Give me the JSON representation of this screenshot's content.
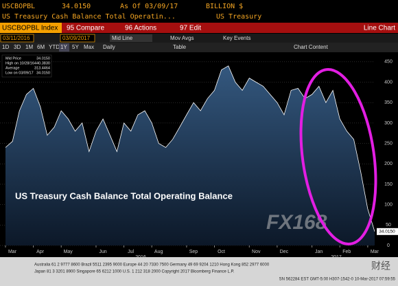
{
  "header": {
    "ticker": "USCBOPBL",
    "price": "34.0150",
    "as_of": "As Of 03/09/17",
    "units": "BILLION $",
    "description": "US Treasury Cash Balance Total Operatin...",
    "source": "US Treasury"
  },
  "toolbar": {
    "index": "USCBOPBL Index",
    "compare": "95 Compare",
    "actions": "96 Actions",
    "edit": "97 Edit",
    "chart_type": "Line Chart"
  },
  "controls": {
    "start": "03/11/2016",
    "end": "03/09/2017",
    "line": "Mid Line",
    "mov_avgs": "Mov Avgs",
    "key_events": "Key Events"
  },
  "periods": [
    "1D",
    "3D",
    "1M",
    "6M",
    "YTD",
    "1Y",
    "5Y",
    "Max"
  ],
  "frequency": "Daily",
  "table": "Table",
  "chart_content": "Chart Content",
  "watermark": {
    "brand": "FX168",
    "cn": "财经"
  },
  "footer": [
    "Australia 61 2 9777 8600 Brazil 5511 2395 9000 Europe 44 20 7330 7500 Germany 49 69 9204 1210 Hong Kong 852 2977 6000",
    "Japan 81 3 3201 8900 Singapore 65 6212 1000 U.S. 1 212 318 2000 Copyright 2017 Bloomberg Finance L.P.",
    "SN 562284 EST GMT-5:00 H307-1542-0 10-Mar-2017 07:59:55"
  ],
  "chart_data": {
    "type": "area",
    "annotation": "US Treasury Cash Balance Total Operating Balance",
    "legend_items": [
      {
        "label": "Mid Price",
        "value": "34.0150"
      },
      {
        "label": "High on 10/28/16",
        "value": "440.3830"
      },
      {
        "label": "Average",
        "value": "313.4464"
      },
      {
        "label": "Low on 03/09/17",
        "value": "34.0150"
      }
    ],
    "categories": [
      "Mar",
      null,
      null,
      null,
      "Apr",
      null,
      null,
      null,
      "May",
      null,
      null,
      null,
      null,
      "Jun",
      null,
      null,
      null,
      "Jul",
      null,
      null,
      null,
      "Aug",
      null,
      null,
      null,
      null,
      "Sep",
      null,
      null,
      null,
      "Oct",
      null,
      null,
      null,
      null,
      "Nov",
      null,
      null,
      null,
      "Dec",
      null,
      null,
      null,
      null,
      "Jan",
      null,
      null,
      null,
      "Feb",
      null,
      null,
      null,
      "Mar",
      null
    ],
    "x_year_labels": [
      "2016",
      "2017"
    ],
    "series": [
      {
        "name": "Mid Price",
        "color": "#ffffff",
        "fill": "#2a4a70",
        "values": [
          240,
          255,
          330,
          370,
          385,
          340,
          270,
          290,
          330,
          310,
          280,
          300,
          230,
          280,
          310,
          270,
          230,
          300,
          280,
          320,
          330,
          300,
          250,
          240,
          260,
          290,
          320,
          350,
          330,
          360,
          380,
          430,
          440,
          400,
          380,
          410,
          400,
          390,
          370,
          350,
          320,
          380,
          385,
          360,
          370,
          390,
          350,
          380,
          310,
          280,
          260,
          180,
          90,
          34.015
        ]
      }
    ],
    "ylim": [
      0,
      470
    ],
    "yticks": [
      0,
      50,
      100,
      150,
      200,
      250,
      300,
      350,
      400,
      450
    ],
    "grid": true
  }
}
